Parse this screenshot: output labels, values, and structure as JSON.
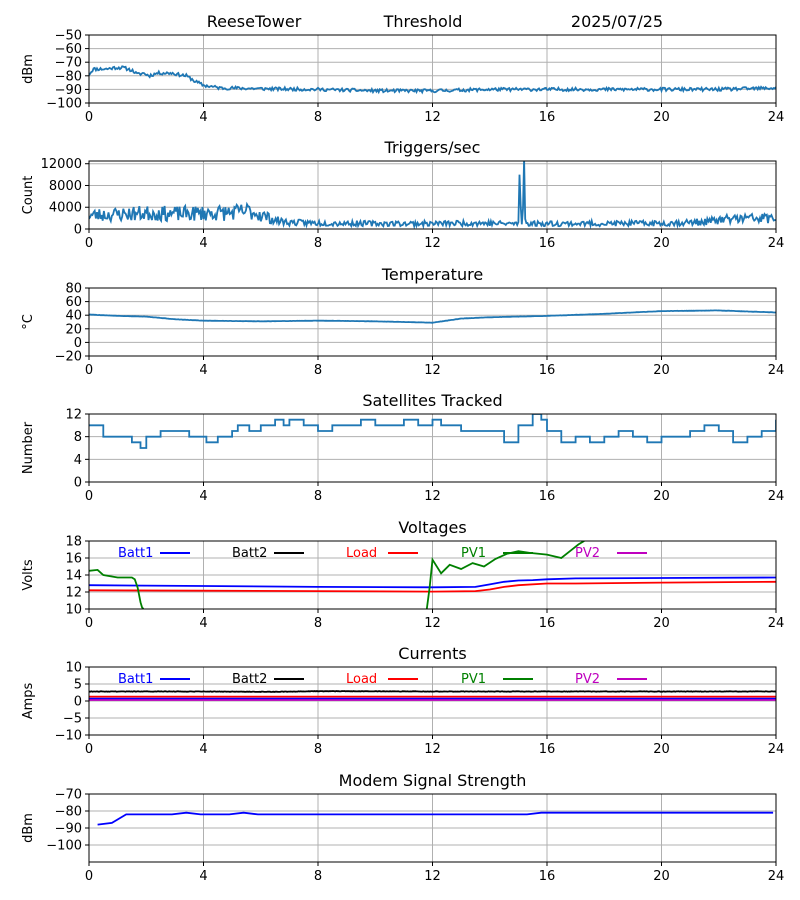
{
  "header": {
    "station": "ReeseTower",
    "mode": "Threshold",
    "date": "2025/07/25"
  },
  "x_ticks": [
    0,
    4,
    8,
    12,
    16,
    20,
    24
  ],
  "chart_data": [
    {
      "type": "line",
      "title": "",
      "ylabel": "dBm",
      "xlim": [
        0,
        24
      ],
      "ylim": [
        -100,
        -50
      ],
      "yticks": [
        -50,
        -60,
        -70,
        -80,
        -90,
        -100
      ],
      "grid": true,
      "series": [
        {
          "color": "#1f77b4",
          "noise": 0.6,
          "seed": 11,
          "x": [
            0,
            0.15,
            0.3,
            0.6,
            0.9,
            1.0,
            1.2,
            1.5,
            1.7,
            1.9,
            2.1,
            2.4,
            2.6,
            2.9,
            3.1,
            3.4,
            3.7,
            4.0,
            4.3,
            4.6,
            5,
            6,
            8,
            10,
            12,
            14,
            16,
            18,
            20,
            22,
            24
          ],
          "y": [
            -79,
            -75,
            -75,
            -75,
            -74,
            -74,
            -74,
            -76,
            -79,
            -78,
            -80,
            -78,
            -78,
            -78,
            -79,
            -80,
            -84,
            -87,
            -88,
            -89,
            -89,
            -89.5,
            -90,
            -91,
            -91,
            -90,
            -90,
            -90,
            -90,
            -90,
            -89
          ]
        }
      ]
    },
    {
      "type": "line",
      "title": "Triggers/sec",
      "ylabel": "Count",
      "xlim": [
        0,
        24
      ],
      "ylim": [
        0,
        12500
      ],
      "yticks": [
        0,
        4000,
        8000,
        12000
      ],
      "grid": true,
      "series": [
        {
          "color": "#1f77b4",
          "noise": 0.55,
          "seed": 23,
          "x": [
            0,
            1,
            2,
            3,
            4,
            5,
            5.6,
            6,
            6.5,
            7,
            8,
            10,
            12,
            13.5,
            14.5,
            15,
            15.05,
            15.1,
            15.15,
            15.2,
            15.25,
            15.3,
            15.5,
            16,
            18,
            20,
            21.5,
            22.5,
            24
          ],
          "y": [
            2500,
            2700,
            2900,
            2800,
            2900,
            3000,
            3300,
            2600,
            1600,
            1200,
            1100,
            1000,
            1000,
            1100,
            1000,
            1000,
            9500,
            1200,
            1100,
            12000,
            1200,
            1000,
            1000,
            1000,
            1000,
            1050,
            1300,
            1900,
            2000
          ]
        }
      ]
    },
    {
      "type": "line",
      "title": "Temperature",
      "ylabel": "°C",
      "xlim": [
        0,
        24
      ],
      "ylim": [
        -20,
        80
      ],
      "yticks": [
        -20,
        0,
        20,
        40,
        60,
        80
      ],
      "grid": true,
      "series": [
        {
          "color": "#1f77b4",
          "noise": 0.04,
          "seed": 5,
          "x": [
            0,
            1,
            2,
            3,
            4,
            6,
            8,
            10,
            12,
            13,
            14,
            16,
            18,
            20,
            22,
            24
          ],
          "y": [
            41,
            39,
            38,
            34,
            32,
            31,
            32,
            31,
            29,
            35,
            37,
            39,
            42,
            46,
            47,
            44
          ]
        }
      ]
    },
    {
      "type": "line",
      "title": "Satellites Tracked",
      "ylabel": "Number",
      "xlim": [
        0,
        24
      ],
      "ylim": [
        0,
        12
      ],
      "yticks": [
        0,
        4,
        8,
        12
      ],
      "grid": true,
      "step": true,
      "series": [
        {
          "color": "#1f77b4",
          "x": [
            0,
            0.5,
            1,
            1.5,
            1.8,
            2,
            2.3,
            2.5,
            3,
            3.5,
            4.1,
            4.5,
            5,
            5.2,
            5.6,
            6,
            6.5,
            6.8,
            7,
            7.5,
            8,
            8.5,
            9,
            9.5,
            10,
            10.5,
            11,
            11.5,
            12,
            12.3,
            13,
            13.5,
            14,
            14.5,
            15,
            15.5,
            15.8,
            16,
            16.5,
            17,
            17.5,
            18,
            18.5,
            19,
            19.5,
            20,
            20.5,
            21,
            21.5,
            22,
            22.5,
            23,
            23.5,
            24
          ],
          "y": [
            10,
            8,
            8,
            7,
            6,
            8,
            8,
            9,
            9,
            8,
            7,
            8,
            9,
            10,
            9,
            10,
            11,
            10,
            11,
            10,
            9,
            10,
            10,
            11,
            10,
            10,
            11,
            10,
            11,
            10,
            9,
            9,
            9,
            7,
            10,
            12,
            11,
            9,
            7,
            8,
            7,
            8,
            9,
            8,
            7,
            8,
            8,
            9,
            10,
            9,
            7,
            8,
            9,
            11
          ]
        }
      ]
    },
    {
      "type": "line",
      "title": "Voltages",
      "ylabel": "Volts",
      "xlim": [
        0,
        24
      ],
      "ylim": [
        10,
        18
      ],
      "yticks": [
        10,
        12,
        14,
        16,
        18
      ],
      "grid": true,
      "legend": [
        {
          "name": "Batt1",
          "color": "#0000ff"
        },
        {
          "name": "Batt2",
          "color": "#000000"
        },
        {
          "name": "Load",
          "color": "#ff0000"
        },
        {
          "name": "PV1",
          "color": "#008000"
        },
        {
          "name": "PV2",
          "color": "#bf00bf"
        }
      ],
      "series": [
        {
          "color": "#0000ff",
          "x": [
            0,
            4,
            8,
            12,
            13.5,
            14,
            14.5,
            15,
            15.5,
            16,
            17,
            20,
            24
          ],
          "y": [
            12.8,
            12.7,
            12.6,
            12.55,
            12.6,
            12.9,
            13.2,
            13.35,
            13.4,
            13.5,
            13.6,
            13.65,
            13.7
          ]
        },
        {
          "color": "#ff0000",
          "x": [
            0,
            4,
            8,
            12,
            13.5,
            14,
            14.5,
            15,
            16,
            17,
            20,
            24
          ],
          "y": [
            12.2,
            12.15,
            12.1,
            12.05,
            12.1,
            12.3,
            12.6,
            12.8,
            13.0,
            13.0,
            13.1,
            13.2
          ]
        },
        {
          "color": "#008000",
          "x": [
            0,
            0.3,
            0.5,
            1.0,
            1.5,
            1.6,
            1.7,
            1.8,
            1.85,
            1.9
          ],
          "y": [
            14.5,
            14.6,
            14.0,
            13.7,
            13.7,
            13.5,
            12.5,
            10.8,
            10.2,
            10.0
          ]
        },
        {
          "color": "#008000",
          "x": [
            11.8,
            11.9,
            12.0,
            12.3,
            12.6,
            13.0,
            13.4,
            13.8,
            14.2,
            14.6,
            15.0,
            15.4,
            16.0,
            16.5,
            16.8,
            17.1,
            17.3
          ],
          "y": [
            10.0,
            12.5,
            15.8,
            14.2,
            15.2,
            14.7,
            15.4,
            15.0,
            15.9,
            16.5,
            16.8,
            16.6,
            16.4,
            16.0,
            16.8,
            17.6,
            18.0
          ]
        }
      ]
    },
    {
      "type": "line",
      "title": "Currents",
      "ylabel": "Amps",
      "xlim": [
        0,
        24
      ],
      "ylim": [
        -10,
        10
      ],
      "yticks": [
        -10,
        -5,
        0,
        5,
        10
      ],
      "grid": true,
      "legend": [
        {
          "name": "Batt1",
          "color": "#0000ff"
        },
        {
          "name": "Batt2",
          "color": "#000000"
        },
        {
          "name": "Load",
          "color": "#ff0000"
        },
        {
          "name": "PV1",
          "color": "#008000"
        },
        {
          "name": "PV2",
          "color": "#bf00bf"
        }
      ],
      "series": [
        {
          "color": "#000000",
          "noise": 0.08,
          "seed": 9,
          "x": [
            0,
            4,
            6.5,
            8,
            12,
            16,
            24
          ],
          "y": [
            2.8,
            2.8,
            2.7,
            2.9,
            2.8,
            2.8,
            2.8
          ]
        },
        {
          "color": "#ff0000",
          "x": [
            0,
            24
          ],
          "y": [
            1.3,
            1.3
          ]
        },
        {
          "color": "#0000ff",
          "x": [
            0,
            24
          ],
          "y": [
            0.7,
            0.7
          ]
        },
        {
          "color": "#bf00bf",
          "x": [
            0,
            24
          ],
          "y": [
            0.3,
            0.3
          ]
        }
      ]
    },
    {
      "type": "line",
      "title": "Modem Signal Strength",
      "ylabel": "dBm",
      "xlim": [
        0,
        24
      ],
      "ylim": [
        -110,
        -70
      ],
      "yticks": [
        -70,
        -80,
        -90,
        -100
      ],
      "grid": true,
      "series": [
        {
          "color": "#0000ff",
          "x": [
            0.3,
            0.8,
            1.0,
            1.3,
            1.9,
            2.9,
            3.4,
            3.9,
            4.9,
            5.4,
            5.9,
            7,
            10,
            13,
            15.3,
            15.8,
            16,
            18,
            20,
            22,
            23.9
          ],
          "y": [
            -88,
            -87,
            -85,
            -82,
            -82,
            -82,
            -81,
            -82,
            -82,
            -81,
            -82,
            -82,
            -82,
            -82,
            -82,
            -81,
            -81,
            -81,
            -81,
            -81,
            -81
          ]
        }
      ]
    }
  ]
}
